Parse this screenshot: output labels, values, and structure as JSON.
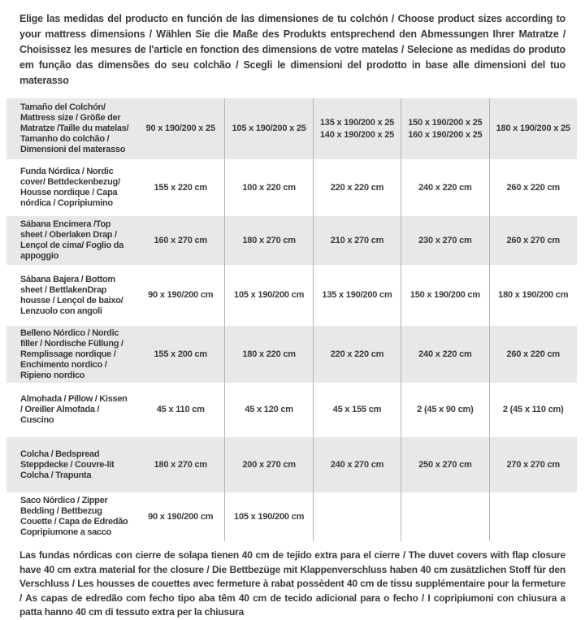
{
  "colors": {
    "row_stripe": "#e8e8e8",
    "divider": "#b5b5b5",
    "text": "#3a3a3a",
    "background": "#ffffff"
  },
  "header": {
    "text": "Elige las medidas del producto en función de las dimensiones de tu colchón / Choose product sizes according to your mattress dimensions / Wählen Sie die Maße des Produkts entsprechend den Abmessungen Ihrer Matratze / Choisissez les mesures de l'article en fonction des dimensions de votre matelas / Selecione as medidas do produto em função das dimensões do seu colchão / Scegli le dimensioni del prodotto in base alle dimensioni del tuo materasso"
  },
  "table": {
    "rows": [
      {
        "label": "Tamaño del Colchón/ Mattress size / Größe der Matratze /Taille du matelas/ Tamanho do colchão / Dimensioni del materasso",
        "values": [
          [
            "90 x 190/200 x 25"
          ],
          [
            "105 x 190/200 x 25"
          ],
          [
            "135 x 190/200 x 25",
            "140 x 190/200 x 25"
          ],
          [
            "150 x 190/200 x 25",
            "160 x 190/200 x 25"
          ],
          [
            "180 x 190/200 x 25"
          ]
        ]
      },
      {
        "label": "Funda Nórdica / Nordic cover/ Bettdeckenbezug/ Housse nordique / Capa nórdica / Copripiumino",
        "values": [
          [
            "155 x 220 cm"
          ],
          [
            "100 x 220 cm"
          ],
          [
            "220 x 220 cm"
          ],
          [
            "240 x 220 cm"
          ],
          [
            "260 x 220 cm"
          ]
        ]
      },
      {
        "label": "Sábana Encimera /Top sheet / Oberlaken Drap / Lençol de cima/ Foglio da appoggio",
        "values": [
          [
            "160 x 270 cm"
          ],
          [
            "180 x 270 cm"
          ],
          [
            "210 x 270 cm"
          ],
          [
            "230 x 270 cm"
          ],
          [
            "260 x 270 cm"
          ]
        ]
      },
      {
        "label": "Sábana Bajera / Bottom sheet / BettlakenDrap housse / Lençol de baixo/ Lenzuolo con angoli",
        "values": [
          [
            "90 x 190/200 cm"
          ],
          [
            "105 x 190/200 cm"
          ],
          [
            "135 x 190/200 cm"
          ],
          [
            "150 x 190/200 cm"
          ],
          [
            "180 x 190/200 cm"
          ]
        ]
      },
      {
        "label": "Belleno Nórdico / Nordic filler / Nordische Füllung / Remplissage nordique / Enchimento nordico / Ripieno nordico",
        "values": [
          [
            "155 x 200 cm"
          ],
          [
            "180 x 220 cm"
          ],
          [
            "220 x 220 cm"
          ],
          [
            "240 x 220 cm"
          ],
          [
            "260 x 220 cm"
          ]
        ]
      },
      {
        "label": "Almohada  / Pillow / Kissen / Oreiller Almofada / Cuscino",
        "values": [
          [
            "45 x 110 cm"
          ],
          [
            "45 x 120 cm"
          ],
          [
            "45 x 155 cm"
          ],
          [
            "2 (45 x 90 cm)"
          ],
          [
            "2 (45 x 110 cm)"
          ]
        ]
      },
      {
        "label": "Colcha / Bedspread Steppdecke / Couvre-lit Colcha / Trapunta",
        "values": [
          [
            "180 x 270 cm"
          ],
          [
            "200 x 270 cm"
          ],
          [
            "240 x 270 cm"
          ],
          [
            "250 x 270 cm"
          ],
          [
            "270 x 270 cm"
          ]
        ]
      },
      {
        "label": "Saco Nórdico / Zipper Bedding / Bettbezug Couette  / Capa de Edredão Copripiumone a sacco",
        "values": [
          [
            "90 x 190/200 cm"
          ],
          [
            "105 x 190/200 cm"
          ],
          [],
          [],
          []
        ]
      }
    ]
  },
  "footer": {
    "text": "Las fundas nórdicas con cierre de solapa tienen 40 cm de tejido extra para el cierre  / The duvet covers with flap closure have 40 cm extra material for the closure / Die Bettbezüge mit Klappenverschluss haben 40 cm zusätzlichen Stoff für den Verschluss / Les housses de couettes avec fermeture à rabat possèdent 40 cm de tissu supplémentaire pour la fermeture / As capas de edredão com fecho tipo aba têm 40 cm de tecido adicional para o fecho / I copripiumoni con chiusura a patta hanno 40 cm di tessuto extra per la chiusura"
  }
}
